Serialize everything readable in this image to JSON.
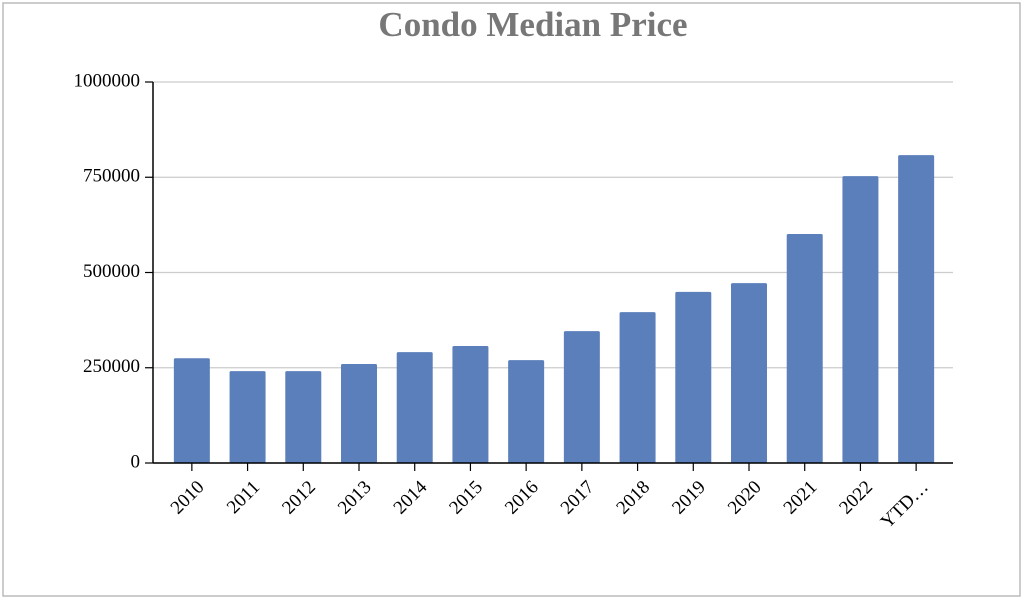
{
  "chart_data": {
    "type": "bar",
    "title": "Condo Median Price",
    "categories": [
      "2010",
      "2011",
      "2012",
      "2013",
      "2014",
      "2015",
      "2016",
      "2017",
      "2018",
      "2019",
      "2020",
      "2021",
      "2022",
      "YTD…"
    ],
    "values": [
      275000,
      241000,
      241000,
      260000,
      291000,
      307000,
      270000,
      346000,
      396000,
      449000,
      472000,
      601000,
      753000,
      808000
    ],
    "color": "#5b7fbb",
    "ylim": [
      0,
      1000000
    ],
    "yticks": [
      0,
      250000,
      500000,
      750000,
      1000000
    ],
    "grid": true
  }
}
